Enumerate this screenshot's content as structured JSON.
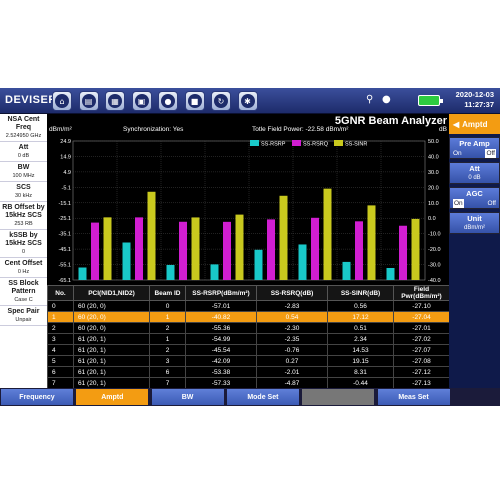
{
  "topbar": {
    "logo": "DEVISER",
    "toolbar": [
      {
        "name": "home-icon",
        "glyph": "⌂"
      },
      {
        "name": "folder-icon",
        "glyph": "▤"
      },
      {
        "name": "file-icon",
        "glyph": "▦"
      },
      {
        "name": "save-icon",
        "glyph": "▣"
      },
      {
        "name": "location-icon",
        "glyph": "●"
      },
      {
        "name": "lock-icon",
        "glyph": "■"
      },
      {
        "name": "refresh-icon",
        "glyph": "↻"
      },
      {
        "name": "settings-icon",
        "glyph": "✱"
      }
    ],
    "date": "2020-12-03",
    "time": "11:27:37"
  },
  "left_panel": [
    {
      "label": "NSA Cent Freq",
      "value": "2.524950 GHz"
    },
    {
      "label": "Att",
      "value": "0 dB"
    },
    {
      "label": "BW",
      "value": "100 MHz"
    },
    {
      "label": "SCS",
      "value": "30 kHz"
    },
    {
      "label": "RB Offset by 15kHz SCS",
      "value": "253 RB"
    },
    {
      "label": "kSSB by 15kHz SCS",
      "value": "0"
    },
    {
      "label": "Cent Offset",
      "value": "0 Hz"
    },
    {
      "label": "SS Block Pattern",
      "value": "Case C"
    },
    {
      "label": "Spec Pair",
      "value": "Unpair"
    }
  ],
  "main": {
    "title": "5GNR Beam Analyzer",
    "unit_left": "dBm/m²",
    "sync_label": "Synchronization:",
    "sync_value": "Yes",
    "power_label": "Totle Field Power:",
    "power_value": "-22.58 dBm/m²",
    "unit_right": "dB"
  },
  "chart_data": {
    "type": "bar",
    "categories": [
      "0",
      "1",
      "2",
      "3",
      "4",
      "5",
      "6",
      "7"
    ],
    "series": [
      {
        "name": "SS-RSRP",
        "color": "#19c9c9",
        "values": [
          -57.01,
          -40.82,
          -55.36,
          -54.99,
          -45.54,
          -42.09,
          -53.38,
          -57.33
        ]
      },
      {
        "name": "SS-RSRQ",
        "color": "#d11ed1",
        "values": [
          -2.83,
          0.54,
          -2.3,
          -2.35,
          -0.76,
          0.27,
          -2.01,
          -4.87
        ]
      },
      {
        "name": "SS-SINR",
        "color": "#c9c91e",
        "values": [
          0.56,
          17.12,
          0.51,
          2.34,
          14.53,
          19.15,
          8.31,
          -0.44
        ]
      }
    ],
    "left_axis": {
      "ticks": [
        "24.9",
        "14.9",
        "4.9",
        "-5.1",
        "-15.1",
        "-25.1",
        "-35.1",
        "-45.1",
        "-55.1",
        "-65.1"
      ],
      "ylim": [
        -65.1,
        24.9
      ]
    },
    "right_axis": {
      "ticks": [
        "50.0",
        "40.0",
        "30.0",
        "20.0",
        "10.0",
        "0.0",
        "-10.0",
        "-20.0",
        "-30.0",
        "-40.0"
      ],
      "ylim": [
        -40.0,
        50.0
      ]
    },
    "legend": "top-center"
  },
  "table": {
    "headers": [
      "No.",
      "PCI(NID1,NID2)",
      "Beam ID",
      "SS-RSRP(dBm/m²)",
      "SS-RSRQ(dB)",
      "SS-SINR(dB)",
      "Field Pwr(dBm/m²)"
    ],
    "rows": [
      [
        "0",
        "60 (20, 0)",
        "0",
        "-57.01",
        "-2.83",
        "0.56",
        "-27.10"
      ],
      [
        "1",
        "60 (20, 0)",
        "1",
        "-40.82",
        "0.54",
        "17.12",
        "-27.04"
      ],
      [
        "2",
        "60 (20, 0)",
        "2",
        "-55.36",
        "-2.30",
        "0.51",
        "-27.01"
      ],
      [
        "3",
        "61 (20, 1)",
        "1",
        "-54.99",
        "-2.35",
        "2.34",
        "-27.02"
      ],
      [
        "4",
        "61 (20, 1)",
        "2",
        "-45.54",
        "-0.76",
        "14.53",
        "-27.07"
      ],
      [
        "5",
        "61 (20, 1)",
        "3",
        "-42.09",
        "0.27",
        "19.15",
        "-27.08"
      ],
      [
        "6",
        "61 (20, 1)",
        "6",
        "-53.38",
        "-2.01",
        "8.31",
        "-27.12"
      ],
      [
        "7",
        "61 (20, 1)",
        "7",
        "-57.33",
        "-4.87",
        "-0.44",
        "-27.13"
      ]
    ],
    "selected_row": 1
  },
  "right_panel": {
    "header": "Amptd",
    "items": [
      {
        "label": "Pre Amp",
        "on": "On",
        "off": "Off",
        "active": "off"
      },
      {
        "label": "Att",
        "value": "0 dB"
      },
      {
        "label": "AGC",
        "on": "On",
        "off": "Off",
        "active": "on"
      },
      {
        "label": "Unit",
        "value": "dBm/m²"
      }
    ]
  },
  "bottom_bar": [
    {
      "label": "Frequency",
      "state": "normal"
    },
    {
      "label": "Amptd",
      "state": "active"
    },
    {
      "label": "BW",
      "state": "normal"
    },
    {
      "label": "Mode Set",
      "state": "normal"
    },
    {
      "label": "",
      "state": "disabled"
    },
    {
      "label": "Meas Set",
      "state": "normal"
    }
  ]
}
